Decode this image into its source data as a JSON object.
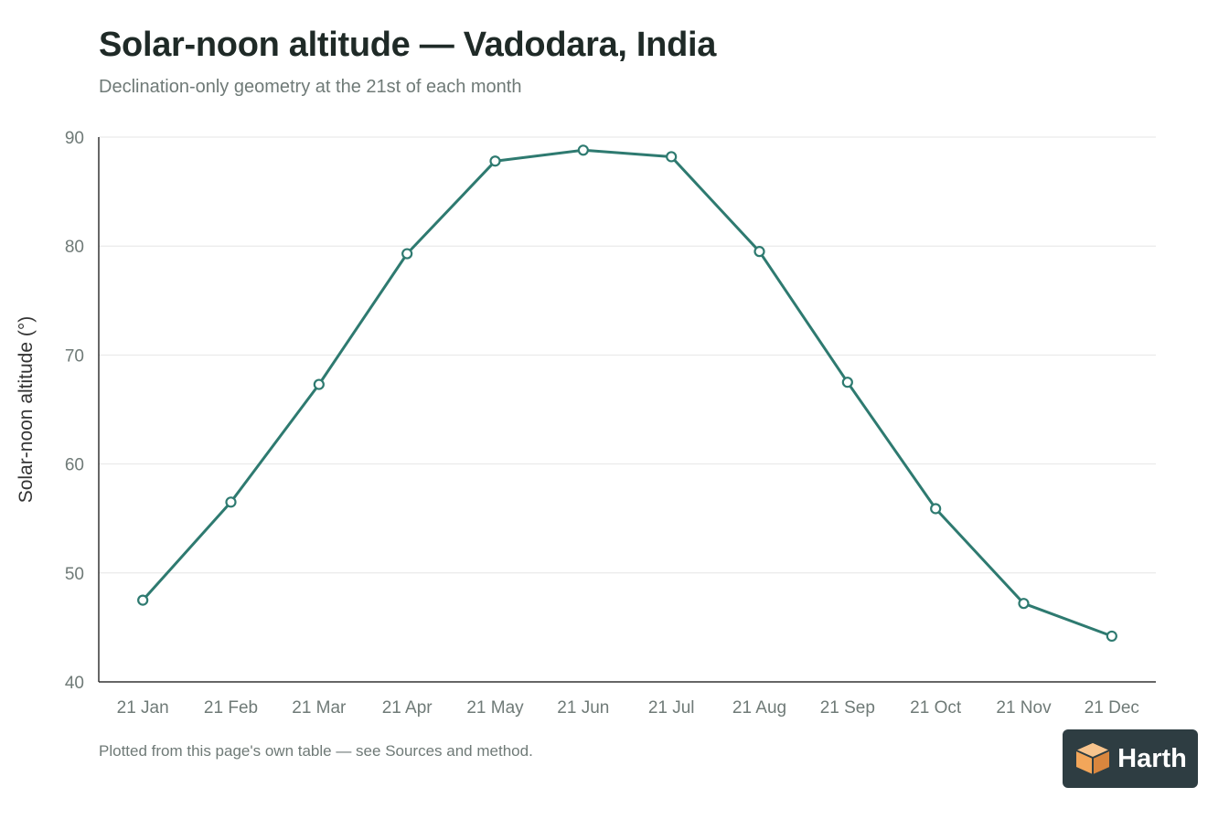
{
  "chart_data": {
    "type": "line",
    "title": "Solar-noon altitude — Vadodara, India",
    "subtitle": "Declination-only geometry at the 21st of each month",
    "xlabel": "",
    "ylabel": "Solar-noon altitude (°)",
    "categories": [
      "21 Jan",
      "21 Feb",
      "21 Mar",
      "21 Apr",
      "21 May",
      "21 Jun",
      "21 Jul",
      "21 Aug",
      "21 Sep",
      "21 Oct",
      "21 Nov",
      "21 Dec"
    ],
    "values": [
      47.5,
      56.5,
      67.3,
      79.3,
      87.8,
      88.8,
      88.2,
      79.5,
      67.5,
      55.9,
      47.2,
      44.2
    ],
    "ylim": [
      40,
      90
    ],
    "yticks": [
      40,
      50,
      60,
      70,
      80,
      90
    ],
    "grid": true,
    "legend": "none",
    "line_color": "#2e7a70",
    "grid_color": "#e6e6e6",
    "axis_color": "#333333"
  },
  "footer": "Plotted from this page's own table — see Sources and method.",
  "badge": {
    "text": "Harth",
    "icon": "cube-icon",
    "background": "#2e3d42",
    "icon_color": "#f2a65a"
  }
}
